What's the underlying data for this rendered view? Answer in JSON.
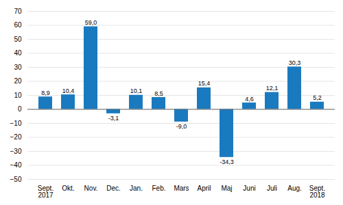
{
  "chart_data": {
    "type": "bar",
    "categories": [
      "Sept.\n2017",
      "Okt.",
      "Nov.",
      "Dec.",
      "Jan.",
      "Feb.",
      "Mars",
      "April",
      "Maj",
      "Juni",
      "Juli",
      "Aug.",
      "Sept.\n2018"
    ],
    "values": [
      8.9,
      10.4,
      59.0,
      -3.1,
      10.1,
      8.5,
      -9.0,
      15.4,
      -34.3,
      4.6,
      12.1,
      30.3,
      5.2
    ],
    "value_labels": [
      "8,9",
      "10,4",
      "59,0",
      "-3,1",
      "10,1",
      "8,5",
      "-9,0",
      "15,4",
      "-34,3",
      "4,6",
      "12,1",
      "30,3",
      "5,2"
    ],
    "color": "#1a7abf",
    "ylim": [
      -50,
      70
    ],
    "yticks": [
      -50,
      -40,
      -30,
      -20,
      -10,
      0,
      10,
      20,
      30,
      40,
      50,
      60,
      70
    ],
    "grid": true,
    "data_labels": true
  }
}
